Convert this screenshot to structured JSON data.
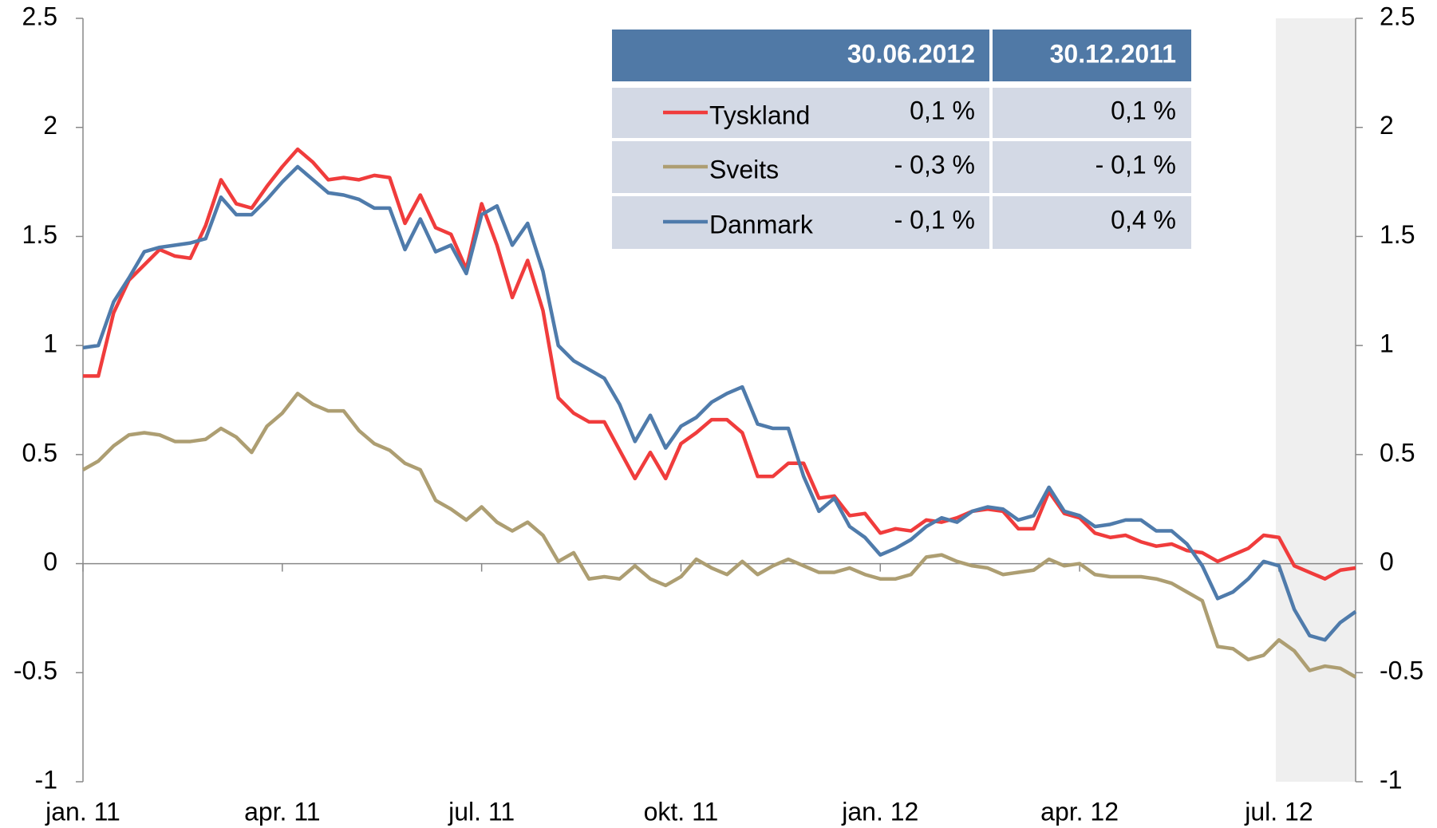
{
  "chart_data": {
    "type": "line",
    "categories": [
      "jan. 11",
      null,
      null,
      null,
      null,
      null,
      null,
      null,
      null,
      null,
      null,
      null,
      null,
      "apr. 11",
      null,
      null,
      null,
      null,
      null,
      null,
      null,
      null,
      null,
      null,
      null,
      null,
      "jul. 11",
      null,
      null,
      null,
      null,
      null,
      null,
      null,
      null,
      null,
      null,
      null,
      null,
      "okt. 11",
      null,
      null,
      null,
      null,
      null,
      null,
      null,
      null,
      null,
      null,
      null,
      null,
      "jan. 12",
      null,
      null,
      null,
      null,
      null,
      null,
      null,
      null,
      null,
      null,
      null,
      null,
      "apr. 12",
      null,
      null,
      null,
      null,
      null,
      null,
      null,
      null,
      null,
      null,
      null,
      null,
      "jul. 12",
      null,
      null,
      null,
      null,
      null
    ],
    "series": [
      {
        "name": "Tyskland",
        "color": "#f03c3c",
        "values": [
          0.86,
          0.86,
          1.15,
          1.3,
          1.37,
          1.44,
          1.41,
          1.4,
          1.55,
          1.76,
          1.65,
          1.63,
          1.73,
          1.82,
          1.9,
          1.84,
          1.76,
          1.77,
          1.76,
          1.78,
          1.77,
          1.56,
          1.69,
          1.54,
          1.51,
          1.35,
          1.65,
          1.46,
          1.22,
          1.39,
          1.16,
          0.76,
          0.69,
          0.65,
          0.65,
          0.52,
          0.39,
          0.51,
          0.39,
          0.55,
          0.6,
          0.66,
          0.66,
          0.6,
          0.4,
          0.4,
          0.46,
          0.46,
          0.3,
          0.31,
          0.22,
          0.23,
          0.14,
          0.16,
          0.15,
          0.2,
          0.19,
          0.21,
          0.24,
          0.25,
          0.24,
          0.16,
          0.16,
          0.33,
          0.23,
          0.21,
          0.14,
          0.12,
          0.13,
          0.1,
          0.08,
          0.09,
          0.06,
          0.05,
          0.01,
          0.04,
          0.07,
          0.13,
          0.12,
          -0.01,
          -0.04,
          -0.07,
          -0.03,
          -0.02
        ]
      },
      {
        "name": "Sveits",
        "color": "#ad9e72",
        "values": [
          0.43,
          0.47,
          0.54,
          0.59,
          0.6,
          0.59,
          0.56,
          0.56,
          0.57,
          0.62,
          0.58,
          0.51,
          0.63,
          0.69,
          0.78,
          0.73,
          0.7,
          0.7,
          0.61,
          0.55,
          0.52,
          0.46,
          0.43,
          0.29,
          0.25,
          0.2,
          0.26,
          0.19,
          0.15,
          0.19,
          0.13,
          0.01,
          0.05,
          -0.07,
          -0.06,
          -0.07,
          -0.01,
          -0.07,
          -0.1,
          -0.06,
          0.02,
          -0.02,
          -0.05,
          0.01,
          -0.05,
          -0.01,
          0.02,
          -0.01,
          -0.04,
          -0.04,
          -0.02,
          -0.05,
          -0.07,
          -0.07,
          -0.05,
          0.03,
          0.04,
          0.01,
          -0.01,
          -0.02,
          -0.05,
          -0.04,
          -0.03,
          0.02,
          -0.01,
          0.0,
          -0.05,
          -0.06,
          -0.06,
          -0.06,
          -0.07,
          -0.09,
          -0.13,
          -0.17,
          -0.38,
          -0.39,
          -0.44,
          -0.42,
          -0.35,
          -0.4,
          -0.49,
          -0.47,
          -0.48,
          -0.52
        ]
      },
      {
        "name": "Danmark",
        "color": "#4f7bab",
        "values": [
          0.99,
          1.0,
          1.2,
          1.31,
          1.43,
          1.45,
          1.46,
          1.47,
          1.49,
          1.68,
          1.6,
          1.6,
          1.67,
          1.75,
          1.82,
          1.76,
          1.7,
          1.69,
          1.67,
          1.63,
          1.63,
          1.44,
          1.58,
          1.43,
          1.46,
          1.33,
          1.6,
          1.64,
          1.46,
          1.56,
          1.34,
          1.0,
          0.93,
          0.89,
          0.85,
          0.73,
          0.56,
          0.68,
          0.53,
          0.63,
          0.67,
          0.74,
          0.78,
          0.81,
          0.64,
          0.62,
          0.62,
          0.4,
          0.24,
          0.3,
          0.17,
          0.12,
          0.04,
          0.07,
          0.11,
          0.17,
          0.21,
          0.19,
          0.24,
          0.26,
          0.25,
          0.2,
          0.22,
          0.35,
          0.24,
          0.22,
          0.17,
          0.18,
          0.2,
          0.2,
          0.15,
          0.15,
          0.09,
          -0.01,
          -0.16,
          -0.13,
          -0.07,
          0.01,
          -0.01,
          -0.21,
          -0.33,
          -0.35,
          -0.27,
          -0.22
        ]
      }
    ],
    "ylim": [
      -1,
      2.5
    ],
    "yticks": [
      -1,
      -0.5,
      0,
      0.5,
      1,
      1.5,
      2,
      2.5
    ],
    "y2lim": [
      -1,
      2.5
    ],
    "y2ticks": [
      -1,
      -0.5,
      0,
      0.5,
      1,
      1.5,
      2,
      2.5
    ],
    "table": {
      "columns": [
        "30.06.2012",
        "30.12.2011"
      ],
      "rows": [
        [
          "0,1 %",
          "0,1 %"
        ],
        [
          "- 0,3 %",
          "- 0,1 %"
        ],
        [
          "- 0,1 %",
          "0,4 %"
        ]
      ]
    }
  }
}
